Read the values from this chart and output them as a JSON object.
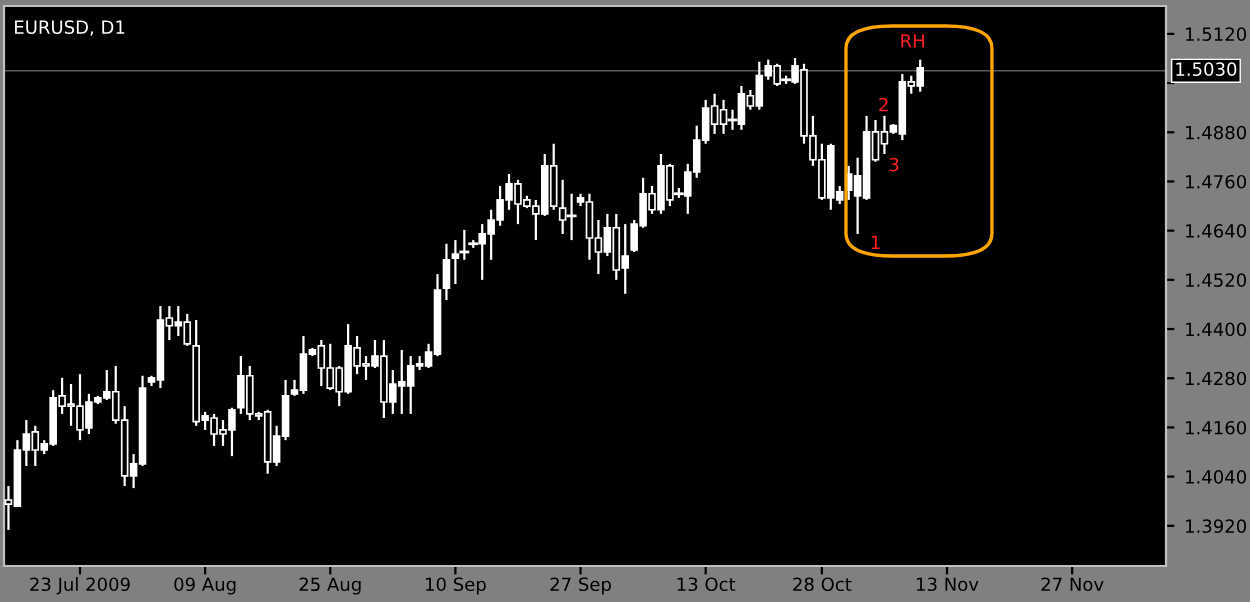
{
  "chart_data": {
    "type": "candlestick",
    "title": "EURUSD, D1",
    "categories": [
      null,
      null,
      null,
      null,
      null,
      null,
      null,
      null,
      "23 Jul 2009",
      null,
      null,
      null,
      null,
      null,
      null,
      null,
      null,
      null,
      null,
      null,
      null,
      null,
      "09 Aug",
      null,
      null,
      null,
      null,
      null,
      null,
      null,
      null,
      null,
      null,
      null,
      null,
      null,
      "25 Aug",
      null,
      null,
      null,
      null,
      null,
      null,
      null,
      null,
      null,
      null,
      null,
      null,
      null,
      "10 Sep",
      null,
      null,
      null,
      null,
      null,
      null,
      null,
      null,
      null,
      null,
      null,
      null,
      null,
      "27 Sep",
      null,
      null,
      null,
      null,
      null,
      null,
      null,
      null,
      null,
      null,
      null,
      null,
      null,
      "13 Oct",
      null,
      null,
      null,
      null,
      null,
      null,
      null,
      null,
      null,
      null,
      null,
      null,
      "28 Oct",
      null,
      null,
      null,
      null,
      null,
      null,
      null,
      null,
      null,
      null,
      null,
      null,
      null,
      "13 Nov",
      null,
      null,
      null,
      null,
      null,
      null,
      null,
      null,
      null,
      null,
      null,
      null,
      null,
      "27 Nov",
      null,
      null,
      null,
      null,
      null,
      null,
      null,
      null,
      null,
      null
    ],
    "series": [
      {
        "color": "#ffffff",
        "ohlc": [
          [
            1.3983,
            1.4017,
            1.391,
            1.3973
          ],
          [
            1.3968,
            1.4129,
            1.3968,
            1.4105
          ],
          [
            1.4105,
            1.4178,
            1.4066,
            1.4144
          ],
          [
            1.4149,
            1.4164,
            1.4066,
            1.4105
          ],
          [
            1.4105,
            1.4129,
            1.4095,
            1.412
          ],
          [
            1.412,
            1.4251,
            1.4115,
            1.4232
          ],
          [
            1.4237,
            1.4281,
            1.4193,
            1.4212
          ],
          [
            1.4217,
            1.4266,
            1.4164,
            1.4212
          ],
          [
            1.4212,
            1.429,
            1.4129,
            1.4154
          ],
          [
            1.4159,
            1.4242,
            1.4144,
            1.4222
          ],
          [
            1.4222,
            1.4237,
            1.4217,
            1.4232
          ],
          [
            1.4232,
            1.43,
            1.4227,
            1.4247
          ],
          [
            1.4247,
            1.431,
            1.4169,
            1.4178
          ],
          [
            1.4178,
            1.4212,
            1.4017,
            1.4042
          ],
          [
            1.4042,
            1.4095,
            1.4012,
            1.4071
          ],
          [
            1.4071,
            1.4286,
            1.4066,
            1.4256
          ],
          [
            1.4271,
            1.4286,
            1.4261,
            1.4281
          ],
          [
            1.4276,
            1.4456,
            1.4256,
            1.4422
          ],
          [
            1.4427,
            1.4456,
            1.4373,
            1.4408
          ],
          [
            1.4408,
            1.4456,
            1.4383,
            1.4417
          ],
          [
            1.4417,
            1.4437,
            1.4359,
            1.4364
          ],
          [
            1.4359,
            1.4422,
            1.4164,
            1.4174
          ],
          [
            1.4178,
            1.4198,
            1.4154,
            1.4188
          ],
          [
            1.4183,
            1.4193,
            1.4115,
            1.4144
          ],
          [
            1.4154,
            1.4178,
            1.4115,
            1.4144
          ],
          [
            1.4154,
            1.4208,
            1.409,
            1.4203
          ],
          [
            1.4208,
            1.4334,
            1.4193,
            1.4286
          ],
          [
            1.4286,
            1.431,
            1.4178,
            1.4193
          ],
          [
            1.4193,
            1.4198,
            1.4178,
            1.4188
          ],
          [
            1.4198,
            1.4203,
            1.4047,
            1.4076
          ],
          [
            1.4076,
            1.4164,
            1.4066,
            1.4139
          ],
          [
            1.4139,
            1.4276,
            1.4129,
            1.4237
          ],
          [
            1.4242,
            1.4276,
            1.4237,
            1.4251
          ],
          [
            1.4251,
            1.4383,
            1.4242,
            1.4339
          ],
          [
            1.4339,
            1.4354,
            1.4334,
            1.4349
          ],
          [
            1.4359,
            1.4373,
            1.4261,
            1.4305
          ],
          [
            1.4305,
            1.4364,
            1.4251,
            1.4256
          ],
          [
            1.4305,
            1.431,
            1.4212,
            1.4247
          ],
          [
            1.4247,
            1.4412,
            1.4242,
            1.4359
          ],
          [
            1.4354,
            1.4383,
            1.429,
            1.431
          ],
          [
            1.4315,
            1.4334,
            1.4276,
            1.431
          ],
          [
            1.431,
            1.4373,
            1.4305,
            1.4334
          ],
          [
            1.4334,
            1.4373,
            1.4183,
            1.4222
          ],
          [
            1.4222,
            1.43,
            1.4193,
            1.4266
          ],
          [
            1.4261,
            1.4349,
            1.4193,
            1.4271
          ],
          [
            1.4261,
            1.4334,
            1.4193,
            1.431
          ],
          [
            1.431,
            1.4334,
            1.43,
            1.4315
          ],
          [
            1.431,
            1.4364,
            1.4305,
            1.4344
          ],
          [
            1.4339,
            1.4534,
            1.4334,
            1.4495
          ],
          [
            1.45,
            1.4608,
            1.4471,
            1.4569
          ],
          [
            1.4573,
            1.4617,
            1.451,
            1.4583
          ],
          [
            1.4588,
            1.4642,
            1.4569,
            1.4588
          ],
          [
            1.4608,
            1.4617,
            1.4598,
            1.4608
          ],
          [
            1.4608,
            1.4656,
            1.452,
            1.4632
          ],
          [
            1.4632,
            1.4691,
            1.4569,
            1.4666
          ],
          [
            1.4666,
            1.4749,
            1.4652,
            1.4715
          ],
          [
            1.4715,
            1.4778,
            1.4691,
            1.4754
          ],
          [
            1.4754,
            1.4764,
            1.4656,
            1.4705
          ],
          [
            1.4715,
            1.4725,
            1.4695,
            1.47
          ],
          [
            1.47,
            1.4715,
            1.4617,
            1.4681
          ],
          [
            1.4681,
            1.4827,
            1.4676,
            1.4798
          ],
          [
            1.4798,
            1.4852,
            1.4691,
            1.47
          ],
          [
            1.4695,
            1.4764,
            1.4632,
            1.4666
          ],
          [
            1.4676,
            1.473,
            1.4617,
            1.4676
          ],
          [
            1.471,
            1.473,
            1.47,
            1.472
          ],
          [
            1.471,
            1.473,
            1.4569,
            1.4622
          ],
          [
            1.4622,
            1.4666,
            1.4534,
            1.4588
          ],
          [
            1.4588,
            1.4681,
            1.4578,
            1.4647
          ],
          [
            1.4647,
            1.4681,
            1.452,
            1.4544
          ],
          [
            1.4549,
            1.4656,
            1.4486,
            1.4578
          ],
          [
            1.4593,
            1.4666,
            1.4588,
            1.4656
          ],
          [
            1.4652,
            1.4769,
            1.4647,
            1.473
          ],
          [
            1.473,
            1.4749,
            1.4681,
            1.4691
          ],
          [
            1.4691,
            1.4827,
            1.4681,
            1.4798
          ],
          [
            1.4798,
            1.4803,
            1.47,
            1.4715
          ],
          [
            1.473,
            1.4744,
            1.472,
            1.473
          ],
          [
            1.4725,
            1.4803,
            1.4681,
            1.4783
          ],
          [
            1.4783,
            1.4896,
            1.4769,
            1.4861
          ],
          [
            1.4861,
            1.4959,
            1.4852,
            1.4939
          ],
          [
            1.4944,
            1.4974,
            1.4876,
            1.49
          ],
          [
            1.4935,
            1.4959,
            1.4876,
            1.49
          ],
          [
            1.491,
            1.4935,
            1.4886,
            1.491
          ],
          [
            1.49,
            1.4993,
            1.4886,
            1.4974
          ],
          [
            1.4969,
            1.4983,
            1.4935,
            1.4944
          ],
          [
            1.4944,
            1.5052,
            1.4935,
            1.5018
          ],
          [
            1.5018,
            1.5057,
            1.5008,
            1.5042
          ],
          [
            1.5042,
            1.5047,
            1.4993,
            1.4998
          ],
          [
            1.5008,
            1.5018,
            1.4998,
            1.5008
          ],
          [
            1.5003,
            1.5061,
            1.4998,
            1.5042
          ],
          [
            1.5032,
            1.5047,
            1.4852,
            1.4871
          ],
          [
            1.4871,
            1.492,
            1.4798,
            1.4813
          ],
          [
            1.4813,
            1.4852,
            1.4715,
            1.472
          ],
          [
            1.472,
            1.4852,
            1.4691,
            1.4847
          ],
          [
            1.4715,
            1.4749,
            1.4705,
            1.4735
          ],
          [
            1.4739,
            1.4798,
            1.4715,
            1.4778
          ],
          [
            1.4725,
            1.4818,
            1.4632,
            1.4774
          ],
          [
            1.472,
            1.492,
            1.4715,
            1.4881
          ],
          [
            1.4881,
            1.491,
            1.4808,
            1.4813
          ],
          [
            1.4881,
            1.492,
            1.4827,
            1.4852
          ],
          [
            1.4881,
            1.49,
            1.4876,
            1.4896
          ],
          [
            1.4876,
            1.5022,
            1.4861,
            1.5003
          ],
          [
            1.5003,
            1.5018,
            1.4974,
            1.4993
          ],
          [
            1.4993,
            1.5057,
            1.4979,
            1.5037
          ],
          null,
          null,
          null,
          null,
          null,
          null,
          null,
          null,
          null,
          null,
          null,
          null,
          null,
          null,
          null,
          null,
          null,
          null,
          null,
          null,
          null,
          null,
          null,
          null,
          null,
          null,
          null
        ]
      }
    ],
    "ylim": [
      1.3822,
      1.5188
    ],
    "yticks": [
      {
        "value": 1.392,
        "label": "1.3920"
      },
      {
        "value": 1.404,
        "label": "1.4040"
      },
      {
        "value": 1.416,
        "label": "1.4160"
      },
      {
        "value": 1.428,
        "label": "1.4280"
      },
      {
        "value": 1.44,
        "label": "1.4400"
      },
      {
        "value": 1.452,
        "label": "1.4520"
      },
      {
        "value": 1.464,
        "label": "1.4640"
      },
      {
        "value": 1.476,
        "label": "1.4760"
      },
      {
        "value": 1.488,
        "label": "1.4880"
      },
      {
        "value": 1.5,
        "label": null
      },
      {
        "value": 1.512,
        "label": "1.5120"
      }
    ],
    "ref_lines": [
      {
        "axis": "y",
        "value": 1.503,
        "label": "1.5030",
        "color": "#5a5a5a"
      }
    ],
    "annotations": [
      "1",
      "2",
      "3",
      "RH"
    ],
    "grid": false,
    "legend": false
  }
}
